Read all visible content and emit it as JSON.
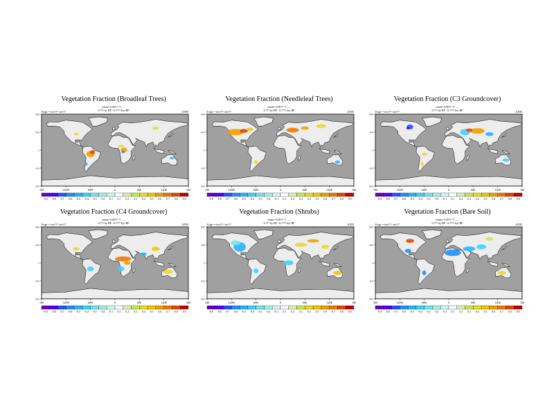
{
  "panels": [
    {
      "id": "broadleaf",
      "title": "Vegetation Fraction (Broadleaf Trees)",
      "sub1": "mean= 0.00?? ?? , ...",
      "sub2": "0.??? ky BP - 0.???? kyr BP",
      "expt": "Expt = tev??- tev??",
      "season": "ANN",
      "xticks": [
        "180",
        "120W",
        "60W",
        "0",
        "60E",
        "120E",
        "180"
      ],
      "yticks": [
        "90N",
        "45N",
        "0",
        "45S",
        "90S"
      ],
      "levels": [
        "-0.9",
        "-0.8",
        "-0.7",
        "-0.6",
        "-0.5",
        "-0.4",
        "-0.3",
        "-0.2",
        "-0.1",
        "0.1",
        "0.2",
        "0.3",
        "0.4",
        "0.5",
        "0.6",
        "0.7",
        "0.8",
        "0.9"
      ]
    },
    {
      "id": "needleleaf",
      "title": "Vegetation Fraction (Needleleaf Trees)",
      "sub1": "mean= 0.00?? ?? , ...",
      "sub2": "0.??? ky BP - 0.???? kyr BP",
      "expt": "Expt = tev??- tev??",
      "season": "ANN",
      "xticks": [
        "180",
        "120W",
        "60W",
        "0",
        "60E",
        "120E",
        "180"
      ],
      "yticks": [
        "90N",
        "45N",
        "0",
        "45S",
        "90S"
      ],
      "levels": [
        "-0.9",
        "-0.8",
        "-0.7",
        "-0.6",
        "-0.5",
        "-0.4",
        "-0.3",
        "-0.2",
        "-0.1",
        "0.1",
        "0.2",
        "0.3",
        "0.4",
        "0.5",
        "0.6",
        "0.7",
        "0.8",
        "0.9"
      ]
    },
    {
      "id": "c3",
      "title": "Vegetation Fraction (C3 Groundcover)",
      "sub1": "mean= 0.00?? ?? , ...",
      "sub2": "0.??? ky BP - 0.???? kyr BP",
      "expt": "Expt = tev??- tev??",
      "season": "ANN",
      "xticks": [
        "180",
        "120W",
        "60W",
        "0",
        "60E",
        "120E",
        "180"
      ],
      "yticks": [
        "90N",
        "45N",
        "0",
        "45S",
        "90S"
      ],
      "levels": [
        "-0.9",
        "-0.8",
        "-0.7",
        "-0.6",
        "-0.5",
        "-0.4",
        "-0.3",
        "-0.2",
        "-0.1",
        "0.1",
        "0.2",
        "0.3",
        "0.4",
        "0.5",
        "0.6",
        "0.7",
        "0.8",
        "0.9"
      ]
    },
    {
      "id": "c4",
      "title": "Vegetation Fraction (C4 Groundcover)",
      "sub1": "mean= 0.00?? ?? , ...",
      "sub2": "0.??? ky BP - 0.???? kyr BP",
      "expt": "Expt = tev??- tev??",
      "season": "ANN",
      "xticks": [
        "180",
        "120W",
        "60W",
        "0",
        "60E",
        "120E",
        "180"
      ],
      "yticks": [
        "90N",
        "45N",
        "0",
        "45S",
        "90S"
      ],
      "levels": [
        "-0.9",
        "-0.8",
        "-0.7",
        "-0.6",
        "-0.5",
        "-0.4",
        "-0.3",
        "-0.2",
        "-0.1",
        "0.1",
        "0.2",
        "0.3",
        "0.4",
        "0.5",
        "0.6",
        "0.7",
        "0.8",
        "0.9"
      ]
    },
    {
      "id": "shrubs",
      "title": "Vegetation Fraction (Shrubs)",
      "sub1": "mean= 0.00?? ?? , ...",
      "sub2": "0.??? ky BP - 0.???? kyr BP",
      "expt": "Expt = tev??- tev??",
      "season": "ANN",
      "xticks": [
        "180",
        "120W",
        "60W",
        "0",
        "60E",
        "120E",
        "180"
      ],
      "yticks": [
        "90N",
        "45N",
        "0",
        "45S",
        "90S"
      ],
      "levels": [
        "-0.9",
        "-0.8",
        "-0.7",
        "-0.6",
        "-0.5",
        "-0.4",
        "-0.3",
        "-0.2",
        "-0.1",
        "0.1",
        "0.2",
        "0.3",
        "0.4",
        "0.5",
        "0.6",
        "0.7",
        "0.8",
        "0.9"
      ]
    },
    {
      "id": "baresoil",
      "title": "Vegetation Fraction (Bare Soil)",
      "sub1": "mean= 0.00?? ?? , ...",
      "sub2": "0.??? ky BP - 0.???? kyr BP",
      "expt": "Expt = tev??- tev??",
      "season": "ANN",
      "xticks": [
        "180",
        "120W",
        "60W",
        "0",
        "60E",
        "120E",
        "180"
      ],
      "yticks": [
        "90N",
        "45N",
        "0",
        "45S",
        "90S"
      ],
      "levels": [
        "-0.9",
        "-0.8",
        "-0.7",
        "-0.6",
        "-0.5",
        "-0.4",
        "-0.3",
        "-0.2",
        "-0.1",
        "0.1",
        "0.2",
        "0.3",
        "0.4",
        "0.5",
        "0.6",
        "0.7",
        "0.8",
        "0.9"
      ]
    }
  ],
  "colors": {
    "ocean": "#a0a0a0",
    "land": "#ededed",
    "coast": "#000000",
    "palette": [
      "#6a00c8",
      "#5000ff",
      "#2850ff",
      "#2090ff",
      "#28b4ff",
      "#3cd2ff",
      "#70e6f0",
      "#a0f0e8",
      "#d0f8f4",
      "#ffffff",
      "#d8f0b0",
      "#c8e650",
      "#e6dc28",
      "#f0c800",
      "#f0a000",
      "#f07800",
      "#e64600",
      "#c80000"
    ]
  }
}
